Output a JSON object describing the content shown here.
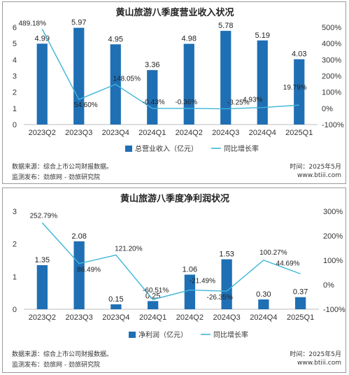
{
  "chart_data": [
    {
      "type": "bar",
      "title": "黄山旅游八季度营业收入状况",
      "categories": [
        "2023Q2",
        "2023Q3",
        "2023Q4",
        "2024Q1",
        "2024Q2",
        "2024Q3",
        "2024Q4",
        "2025Q1"
      ],
      "series": [
        {
          "name": "总营业收入（亿元）",
          "type": "bar",
          "axis": "left",
          "color": "#1f6fb4",
          "values": [
            4.99,
            5.97,
            4.95,
            3.36,
            4.98,
            5.78,
            5.19,
            4.03
          ],
          "labels": [
            "4.99",
            "5.97",
            "4.95",
            "3.36",
            "4.98",
            "5.78",
            "5.19",
            "4.03"
          ]
        },
        {
          "name": "同比增长率",
          "type": "line",
          "axis": "right",
          "color": "#3fb6d9",
          "values": [
            489.18,
            54.6,
            148.05,
            -0.43,
            -0.36,
            -3.25,
            4.93,
            19.79
          ],
          "labels": [
            "489.18%",
            "54.60%",
            "148.05%",
            "-0.43%",
            "-0.36%",
            "-3.25%",
            "4.93%",
            "19.79%"
          ]
        }
      ],
      "ylim": [
        0,
        6
      ],
      "yticks": [
        "0",
        "1",
        "2",
        "3",
        "4",
        "5",
        "6"
      ],
      "y2lim": [
        -100,
        500
      ],
      "y2ticks": [
        "-100%",
        "0%",
        "100%",
        "200%",
        "300%",
        "400%",
        "500%"
      ],
      "grid": false,
      "legend": "bottom",
      "source_text": "数据来源：综合上市公司财报数据。",
      "publisher_text": "监测发布：劲旅网 - 劲旅研究院",
      "time_text": "时间：2025年5月",
      "site_text": "www.btiii.com"
    },
    {
      "type": "bar",
      "title": "黄山旅游八季度净利润状况",
      "categories": [
        "2023Q2",
        "2023Q3",
        "2023Q4",
        "2024Q1",
        "2024Q2",
        "2024Q3",
        "2024Q4",
        "2025Q1"
      ],
      "series": [
        {
          "name": "净利润（亿元）",
          "type": "bar",
          "axis": "left",
          "color": "#1f6fb4",
          "values": [
            1.35,
            2.08,
            0.15,
            0.25,
            1.06,
            1.53,
            0.3,
            0.37
          ],
          "labels": [
            "1.35",
            "2.08",
            "0.15",
            "0.25",
            "1.06",
            "1.53",
            "0.30",
            "0.37"
          ]
        },
        {
          "name": "同比增长率",
          "type": "line",
          "axis": "right",
          "color": "#3fb6d9",
          "values": [
            252.79,
            86.49,
            121.2,
            -60.51,
            -21.49,
            -26.35,
            100.27,
            44.69
          ],
          "labels": [
            "252.79%",
            "86.49%",
            "121.20%",
            "-60.51%",
            "-21.49%",
            "-26.35%",
            "100.27%",
            "44.69%"
          ]
        }
      ],
      "ylim": [
        0,
        3
      ],
      "yticks": [
        "0",
        "1",
        "2",
        "3"
      ],
      "y2lim": [
        -100,
        300
      ],
      "y2ticks": [
        "-100%",
        "0%",
        "100%",
        "200%",
        "300%"
      ],
      "grid": false,
      "legend": "bottom",
      "source_text": "数据来源：综合上市公司财报数据。",
      "publisher_text": "监测发布：劲旅网 - 劲旅研究院",
      "time_text": "时间：2025年5月",
      "site_text": "www.btiii.com"
    }
  ]
}
